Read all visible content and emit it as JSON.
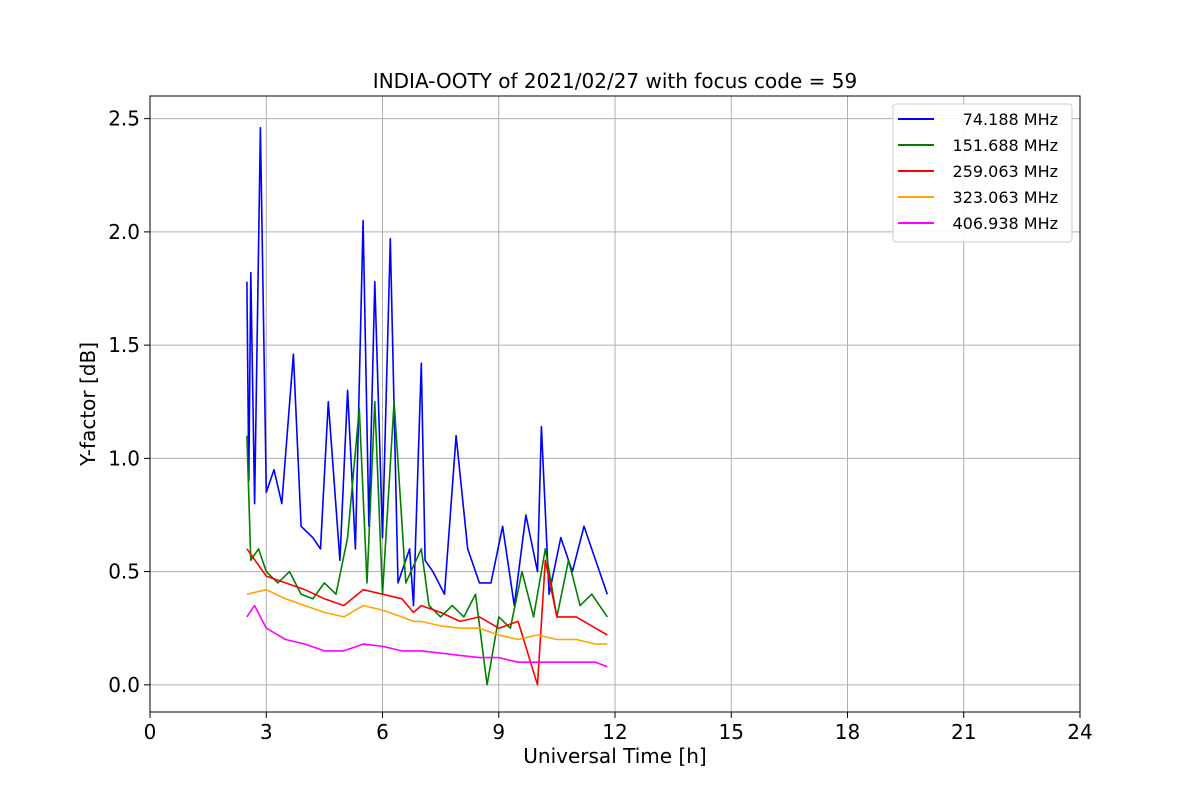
{
  "chart_data": {
    "type": "line",
    "title": "INDIA-OOTY of 2021/02/27 with focus code = 59",
    "xlabel": "Universal Time [h]",
    "ylabel": "Y-factor [dB]",
    "xlim": [
      0,
      24
    ],
    "ylim": [
      -0.12,
      2.6
    ],
    "xticks": [
      0,
      3,
      6,
      9,
      12,
      15,
      18,
      21,
      24
    ],
    "xtick_labels": [
      "0",
      "3",
      "6",
      "9",
      "12",
      "15",
      "18",
      "21",
      "24"
    ],
    "yticks": [
      0.0,
      0.5,
      1.0,
      1.5,
      2.0,
      2.5
    ],
    "ytick_labels": [
      "0.0",
      "0.5",
      "1.0",
      "1.5",
      "2.0",
      "2.5"
    ],
    "grid": true,
    "legend_position": "top-right",
    "series": [
      {
        "name": "74.188 MHz",
        "color": "#0000ff",
        "x": [
          2.5,
          2.55,
          2.6,
          2.7,
          2.85,
          3.0,
          3.2,
          3.4,
          3.7,
          3.9,
          4.2,
          4.4,
          4.6,
          4.9,
          5.1,
          5.3,
          5.5,
          5.65,
          5.8,
          6.0,
          6.2,
          6.4,
          6.7,
          6.8,
          7.0,
          7.1,
          7.3,
          7.6,
          7.9,
          8.2,
          8.5,
          8.8,
          9.1,
          9.4,
          9.7,
          10.0,
          10.1,
          10.3,
          10.6,
          10.9,
          11.2,
          11.5,
          11.8
        ],
        "y": [
          1.78,
          0.9,
          1.82,
          0.8,
          2.46,
          0.85,
          0.95,
          0.8,
          1.46,
          0.7,
          0.65,
          0.6,
          1.25,
          0.55,
          1.3,
          0.6,
          2.05,
          0.7,
          1.78,
          0.65,
          1.97,
          0.45,
          0.6,
          0.35,
          1.42,
          0.55,
          0.5,
          0.4,
          1.1,
          0.6,
          0.45,
          0.45,
          0.7,
          0.35,
          0.75,
          0.5,
          1.14,
          0.4,
          0.65,
          0.5,
          0.7,
          0.55,
          0.4
        ]
      },
      {
        "name": "151.688 MHz",
        "color": "#008000",
        "x": [
          2.5,
          2.6,
          2.8,
          3.0,
          3.3,
          3.6,
          3.9,
          4.2,
          4.5,
          4.8,
          5.1,
          5.4,
          5.6,
          5.8,
          6.0,
          6.3,
          6.6,
          7.0,
          7.2,
          7.5,
          7.8,
          8.1,
          8.4,
          8.7,
          9.0,
          9.3,
          9.6,
          9.9,
          10.2,
          10.5,
          10.8,
          11.1,
          11.4,
          11.8
        ],
        "y": [
          1.1,
          0.55,
          0.6,
          0.5,
          0.45,
          0.5,
          0.4,
          0.38,
          0.45,
          0.4,
          0.65,
          1.22,
          0.45,
          1.25,
          0.4,
          1.25,
          0.45,
          0.6,
          0.35,
          0.3,
          0.35,
          0.3,
          0.4,
          0.0,
          0.3,
          0.25,
          0.5,
          0.3,
          0.6,
          0.3,
          0.55,
          0.35,
          0.4,
          0.3
        ]
      },
      {
        "name": "259.063 MHz",
        "color": "#ff0000",
        "x": [
          2.5,
          3.0,
          3.5,
          4.0,
          4.5,
          5.0,
          5.5,
          6.0,
          6.5,
          6.8,
          7.0,
          7.5,
          8.0,
          8.5,
          9.0,
          9.5,
          10.0,
          10.2,
          10.5,
          11.0,
          11.5,
          11.8
        ],
        "y": [
          0.6,
          0.48,
          0.45,
          0.42,
          0.38,
          0.35,
          0.42,
          0.4,
          0.38,
          0.32,
          0.35,
          0.32,
          0.28,
          0.3,
          0.25,
          0.28,
          0.0,
          0.55,
          0.3,
          0.3,
          0.25,
          0.22
        ]
      },
      {
        "name": "323.063 MHz",
        "color": "#ffa500",
        "x": [
          2.5,
          3.0,
          3.5,
          4.0,
          4.5,
          5.0,
          5.5,
          6.0,
          6.5,
          6.8,
          7.0,
          7.5,
          8.0,
          8.5,
          9.0,
          9.5,
          10.0,
          10.5,
          11.0,
          11.5,
          11.8
        ],
        "y": [
          0.4,
          0.42,
          0.38,
          0.35,
          0.32,
          0.3,
          0.35,
          0.33,
          0.3,
          0.28,
          0.28,
          0.26,
          0.25,
          0.25,
          0.22,
          0.2,
          0.22,
          0.2,
          0.2,
          0.18,
          0.18
        ]
      },
      {
        "name": "406.938 MHz",
        "color": "#ff00ff",
        "x": [
          2.5,
          2.7,
          3.0,
          3.5,
          4.0,
          4.5,
          5.0,
          5.5,
          6.0,
          6.5,
          6.8,
          7.0,
          7.5,
          8.0,
          8.5,
          9.0,
          9.5,
          10.0,
          10.5,
          11.0,
          11.5,
          11.8
        ],
        "y": [
          0.3,
          0.35,
          0.25,
          0.2,
          0.18,
          0.15,
          0.15,
          0.18,
          0.17,
          0.15,
          0.15,
          0.15,
          0.14,
          0.13,
          0.12,
          0.12,
          0.1,
          0.1,
          0.1,
          0.1,
          0.1,
          0.08
        ]
      }
    ]
  }
}
